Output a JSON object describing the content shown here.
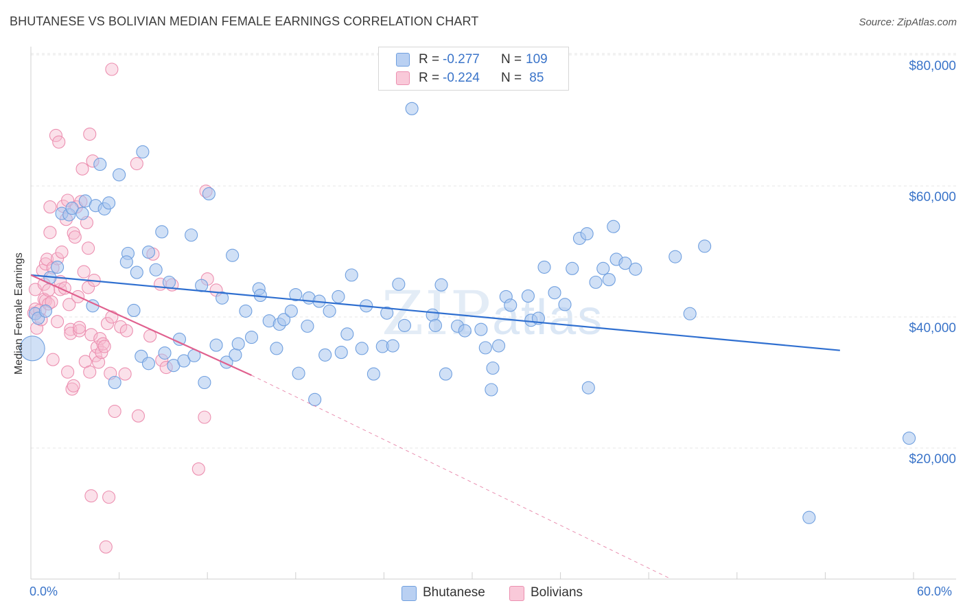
{
  "header": {
    "title": "BHUTANESE VS BOLIVIAN MEDIAN FEMALE EARNINGS CORRELATION CHART",
    "source": "Source: ZipAtlas.com"
  },
  "watermark": {
    "zip": "ZIP",
    "atlas": "atlas"
  },
  "legend": {
    "rows": [
      {
        "r_label": "R =",
        "r_value": "-0.277",
        "n_label": "N =",
        "n_value": "109"
      },
      {
        "r_label": "R =",
        "r_value": "-0.224",
        "n_label": "N =",
        "n_value": " 85"
      }
    ]
  },
  "bottom_legend": [
    "Bhutanese",
    "Bolivians"
  ],
  "colors": {
    "blue_fill": "#a9c6ee",
    "blue_stroke": "#6f9fdf",
    "blue_line": "#2f6fd0",
    "pink_fill": "#f6bcd0",
    "pink_stroke": "#ec8fb0",
    "pink_line": "#e0608e",
    "grid": "#e6e6e6",
    "tick_text": "#3a74c9"
  },
  "chart_data": {
    "type": "scatter",
    "title": "BHUTANESE VS BOLIVIAN MEDIAN FEMALE EARNINGS CORRELATION CHART",
    "xlabel": "",
    "ylabel": "Median Female Earnings",
    "xlim": [
      0,
      60
    ],
    "ylim": [
      0,
      80000
    ],
    "x_tick_labels": [
      "0.0%",
      "60.0%"
    ],
    "y_ticks": [
      20000,
      40000,
      60000,
      80000
    ],
    "y_tick_labels": [
      "$20,000",
      "$40,000",
      "$60,000",
      "$80,000"
    ],
    "grid": true,
    "legend_position": "top-center",
    "series": [
      {
        "name": "Bhutanese",
        "r": -0.277,
        "n": 109,
        "trend": {
          "x": [
            0,
            55
          ],
          "y": [
            46400,
            34900
          ]
        },
        "points": [
          [
            0.1,
            35200,
            2.0
          ],
          [
            0.3,
            40500,
            1.0
          ],
          [
            0.5,
            39800,
            1.0
          ],
          [
            1.0,
            40900,
            1.0
          ],
          [
            1.3,
            46000,
            1.0
          ],
          [
            1.8,
            47600,
            1.0
          ],
          [
            2.1,
            55800,
            1.0
          ],
          [
            2.6,
            55600,
            1.0
          ],
          [
            2.8,
            56600,
            1.0
          ],
          [
            3.5,
            55800,
            1.0
          ],
          [
            3.7,
            57700,
            1.0
          ],
          [
            4.2,
            41700,
            1.0
          ],
          [
            4.7,
            63300,
            1.0
          ],
          [
            4.4,
            57000,
            1.0
          ],
          [
            5.0,
            56500,
            1.0
          ],
          [
            5.3,
            57400,
            1.0
          ],
          [
            5.7,
            30000,
            1.0
          ],
          [
            6.0,
            61700,
            1.0
          ],
          [
            6.6,
            49700,
            1.0
          ],
          [
            6.5,
            48400,
            1.0
          ],
          [
            7.0,
            41000,
            1.0
          ],
          [
            7.2,
            46800,
            1.0
          ],
          [
            7.5,
            34000,
            1.0
          ],
          [
            7.6,
            65200,
            1.0
          ],
          [
            8.0,
            49900,
            1.0
          ],
          [
            8.0,
            32900,
            1.0
          ],
          [
            8.5,
            47200,
            1.0
          ],
          [
            8.9,
            53000,
            1.0
          ],
          [
            9.1,
            34500,
            1.0
          ],
          [
            9.4,
            45300,
            1.0
          ],
          [
            9.7,
            32600,
            1.0
          ],
          [
            10.1,
            36600,
            1.0
          ],
          [
            10.4,
            33300,
            1.0
          ],
          [
            10.9,
            52500,
            1.0
          ],
          [
            11.1,
            34100,
            1.0
          ],
          [
            11.6,
            44800,
            1.0
          ],
          [
            11.8,
            30000,
            1.0
          ],
          [
            12.1,
            58800,
            1.0
          ],
          [
            12.6,
            35700,
            1.0
          ],
          [
            13.0,
            42900,
            1.0
          ],
          [
            13.3,
            33100,
            1.0
          ],
          [
            13.7,
            49400,
            1.0
          ],
          [
            13.9,
            34200,
            1.0
          ],
          [
            14.1,
            35900,
            1.0
          ],
          [
            14.6,
            40900,
            1.0
          ],
          [
            15.0,
            36900,
            1.0
          ],
          [
            15.5,
            44300,
            1.0
          ],
          [
            15.6,
            43300,
            1.0
          ],
          [
            16.2,
            39400,
            1.0
          ],
          [
            16.7,
            35200,
            1.0
          ],
          [
            16.9,
            38900,
            1.0
          ],
          [
            17.2,
            39600,
            1.0
          ],
          [
            17.7,
            40900,
            1.0
          ],
          [
            18.0,
            43400,
            1.0
          ],
          [
            18.2,
            31400,
            1.0
          ],
          [
            18.8,
            38600,
            1.0
          ],
          [
            18.9,
            42900,
            1.0
          ],
          [
            19.3,
            27400,
            1.0
          ],
          [
            19.6,
            42400,
            1.0
          ],
          [
            20.0,
            34200,
            1.0
          ],
          [
            20.3,
            40900,
            1.0
          ],
          [
            20.9,
            43100,
            1.0
          ],
          [
            21.1,
            34600,
            1.0
          ],
          [
            21.5,
            37400,
            1.0
          ],
          [
            21.8,
            46400,
            1.0
          ],
          [
            22.5,
            35200,
            1.0
          ],
          [
            22.8,
            41700,
            1.0
          ],
          [
            23.3,
            31300,
            1.0
          ],
          [
            23.9,
            35500,
            1.0
          ],
          [
            24.2,
            40600,
            1.0
          ],
          [
            24.6,
            35600,
            1.0
          ],
          [
            25.0,
            45000,
            1.0
          ],
          [
            25.4,
            38700,
            1.0
          ],
          [
            25.9,
            71800,
            1.0
          ],
          [
            27.3,
            40300,
            1.0
          ],
          [
            27.5,
            38700,
            1.0
          ],
          [
            27.9,
            44900,
            1.0
          ],
          [
            28.2,
            31300,
            1.0
          ],
          [
            29.0,
            38600,
            1.0
          ],
          [
            29.5,
            37900,
            1.0
          ],
          [
            30.6,
            38100,
            1.0
          ],
          [
            30.9,
            35300,
            1.0
          ],
          [
            31.3,
            28900,
            1.0
          ],
          [
            31.4,
            32200,
            1.0
          ],
          [
            31.8,
            35600,
            1.0
          ],
          [
            32.3,
            43100,
            1.0
          ],
          [
            32.6,
            41800,
            1.0
          ],
          [
            33.8,
            43200,
            1.0
          ],
          [
            34.0,
            39500,
            1.0
          ],
          [
            34.5,
            39800,
            1.0
          ],
          [
            34.9,
            47600,
            1.0
          ],
          [
            35.6,
            43700,
            1.0
          ],
          [
            36.3,
            41900,
            1.0
          ],
          [
            36.8,
            47400,
            1.0
          ],
          [
            37.3,
            52000,
            1.0
          ],
          [
            37.8,
            52700,
            1.0
          ],
          [
            37.9,
            29200,
            1.0
          ],
          [
            38.4,
            45300,
            1.0
          ],
          [
            38.9,
            47400,
            1.0
          ],
          [
            39.3,
            45700,
            1.0
          ],
          [
            39.6,
            53800,
            1.0
          ],
          [
            39.8,
            48800,
            1.0
          ],
          [
            40.4,
            48200,
            1.0
          ],
          [
            41.1,
            47300,
            1.0
          ],
          [
            43.8,
            49200,
            1.0
          ],
          [
            44.8,
            40500,
            1.0
          ],
          [
            45.8,
            50800,
            1.0
          ],
          [
            52.9,
            9400,
            1.0
          ],
          [
            59.7,
            21500,
            1.0
          ]
        ]
      },
      {
        "name": "Bolivians",
        "r": -0.224,
        "n": 85,
        "trend": {
          "x": [
            0,
            15
          ],
          "y": [
            46400,
            31100
          ]
        },
        "trend_extension": {
          "x": [
            15,
            46
          ],
          "y": [
            31100,
            -2700
          ]
        },
        "points": [
          [
            0.2,
            40600,
            1.0
          ],
          [
            0.3,
            41200,
            1.0
          ],
          [
            0.3,
            44200,
            1.0
          ],
          [
            0.4,
            38300,
            1.0
          ],
          [
            0.6,
            41000,
            1.0
          ],
          [
            0.7,
            39600,
            1.0
          ],
          [
            0.8,
            47100,
            1.0
          ],
          [
            0.9,
            42700,
            1.0
          ],
          [
            0.9,
            45000,
            1.0
          ],
          [
            1.0,
            48100,
            1.0
          ],
          [
            1.0,
            42500,
            1.0
          ],
          [
            1.1,
            48800,
            1.0
          ],
          [
            1.2,
            42000,
            1.0
          ],
          [
            1.2,
            44100,
            1.0
          ],
          [
            1.3,
            52900,
            1.0
          ],
          [
            1.3,
            56800,
            1.0
          ],
          [
            1.4,
            42300,
            1.0
          ],
          [
            1.5,
            33500,
            1.0
          ],
          [
            1.5,
            47500,
            1.0
          ],
          [
            1.7,
            67700,
            1.0
          ],
          [
            1.8,
            48900,
            1.0
          ],
          [
            1.8,
            39300,
            1.0
          ],
          [
            1.9,
            66700,
            1.0
          ],
          [
            2.0,
            44200,
            1.0
          ],
          [
            2.0,
            45400,
            1.0
          ],
          [
            2.1,
            49900,
            1.0
          ],
          [
            2.2,
            56900,
            1.0
          ],
          [
            2.3,
            44400,
            1.0
          ],
          [
            2.4,
            54900,
            1.0
          ],
          [
            2.5,
            57800,
            1.0
          ],
          [
            2.5,
            31600,
            1.0
          ],
          [
            2.6,
            41900,
            1.0
          ],
          [
            2.7,
            38100,
            1.0
          ],
          [
            2.7,
            37500,
            1.0
          ],
          [
            2.8,
            29000,
            1.0
          ],
          [
            2.9,
            29500,
            1.0
          ],
          [
            2.9,
            52800,
            1.0
          ],
          [
            3.0,
            52200,
            1.0
          ],
          [
            3.1,
            56800,
            1.0
          ],
          [
            3.2,
            43100,
            1.0
          ],
          [
            3.3,
            37900,
            1.0
          ],
          [
            3.3,
            38400,
            1.0
          ],
          [
            3.4,
            57600,
            1.0
          ],
          [
            3.5,
            62600,
            1.0
          ],
          [
            3.6,
            46900,
            1.0
          ],
          [
            3.7,
            33200,
            1.0
          ],
          [
            3.8,
            54400,
            1.0
          ],
          [
            3.9,
            50500,
            1.0
          ],
          [
            3.9,
            44500,
            1.0
          ],
          [
            4.0,
            67900,
            1.0
          ],
          [
            4.0,
            31600,
            1.0
          ],
          [
            4.1,
            12700,
            1.0
          ],
          [
            4.1,
            37300,
            1.0
          ],
          [
            4.2,
            63800,
            1.0
          ],
          [
            4.3,
            45600,
            1.0
          ],
          [
            4.4,
            34100,
            1.0
          ],
          [
            4.5,
            35400,
            1.0
          ],
          [
            4.6,
            33100,
            1.0
          ],
          [
            4.7,
            36700,
            1.0
          ],
          [
            4.8,
            34600,
            1.0
          ],
          [
            4.9,
            35900,
            1.0
          ],
          [
            5.0,
            35500,
            1.0
          ],
          [
            5.1,
            4900,
            1.0
          ],
          [
            5.2,
            39000,
            1.0
          ],
          [
            5.3,
            12500,
            1.0
          ],
          [
            5.4,
            31400,
            1.0
          ],
          [
            5.5,
            40000,
            1.0
          ],
          [
            5.5,
            77800,
            1.0
          ],
          [
            5.7,
            25600,
            1.0
          ],
          [
            6.1,
            38500,
            1.0
          ],
          [
            6.4,
            31300,
            1.0
          ],
          [
            6.5,
            37900,
            1.0
          ],
          [
            7.2,
            63400,
            1.0
          ],
          [
            7.3,
            24900,
            1.0
          ],
          [
            8.1,
            37100,
            1.0
          ],
          [
            8.3,
            49600,
            1.0
          ],
          [
            8.8,
            45000,
            1.0
          ],
          [
            8.9,
            33400,
            1.0
          ],
          [
            9.2,
            32300,
            1.0
          ],
          [
            9.6,
            44900,
            1.0
          ],
          [
            11.4,
            16800,
            1.0
          ],
          [
            11.8,
            24700,
            1.0
          ],
          [
            11.9,
            59200,
            1.0
          ],
          [
            12.0,
            45800,
            1.0
          ],
          [
            12.6,
            44100,
            1.0
          ]
        ]
      }
    ]
  }
}
